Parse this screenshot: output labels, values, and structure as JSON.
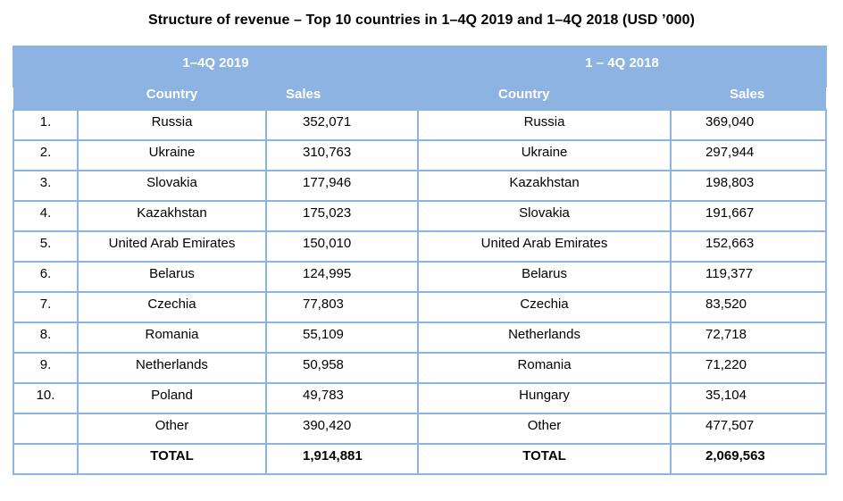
{
  "title": "Structure of revenue – Top 10 countries in 1–4Q 2019 and 1–4Q 2018 (USD ’000)",
  "periods": {
    "left": "1–4Q 2019",
    "right": "1 – 4Q 2018"
  },
  "headers": {
    "country_left": "Country",
    "sales_left": "Sales",
    "country_right": "Country",
    "sales_right": "Sales"
  },
  "colors": {
    "header_fill": "#8db3e2",
    "header_text": "#ffffff",
    "grid_lines": "#8db3e2"
  },
  "rows": [
    {
      "rank": "1.",
      "country_2019": "Russia",
      "sales_2019": "352,071",
      "country_2018": "Russia",
      "sales_2018": "369,040"
    },
    {
      "rank": "2.",
      "country_2019": "Ukraine",
      "sales_2019": "310,763",
      "country_2018": "Ukraine",
      "sales_2018": "297,944"
    },
    {
      "rank": "3.",
      "country_2019": "Slovakia",
      "sales_2019": "177,946",
      "country_2018": "Kazakhstan",
      "sales_2018": "198,803"
    },
    {
      "rank": "4.",
      "country_2019": "Kazakhstan",
      "sales_2019": "175,023",
      "country_2018": "Slovakia",
      "sales_2018": "191,667"
    },
    {
      "rank": "5.",
      "country_2019": "United Arab Emirates",
      "sales_2019": "150,010",
      "country_2018": "United Arab Emirates",
      "sales_2018": "152,663"
    },
    {
      "rank": "6.",
      "country_2019": "Belarus",
      "sales_2019": "124,995",
      "country_2018": "Belarus",
      "sales_2018": "119,377"
    },
    {
      "rank": "7.",
      "country_2019": "Czechia",
      "sales_2019": "77,803",
      "country_2018": "Czechia",
      "sales_2018": "83,520"
    },
    {
      "rank": "8.",
      "country_2019": "Romania",
      "sales_2019": "55,109",
      "country_2018": "Netherlands",
      "sales_2018": "72,718"
    },
    {
      "rank": "9.",
      "country_2019": "Netherlands",
      "sales_2019": "50,958",
      "country_2018": "Romania",
      "sales_2018": "71,220"
    },
    {
      "rank": "10.",
      "country_2019": "Poland",
      "sales_2019": "49,783",
      "country_2018": "Hungary",
      "sales_2018": "35,104"
    },
    {
      "rank": "",
      "country_2019": "Other",
      "sales_2019": "390,420",
      "country_2018": "Other",
      "sales_2018": "477,507"
    }
  ],
  "total": {
    "label_2019": "TOTAL",
    "sales_2019": "1,914,881",
    "label_2018": "TOTAL",
    "sales_2018": "2,069,563"
  }
}
